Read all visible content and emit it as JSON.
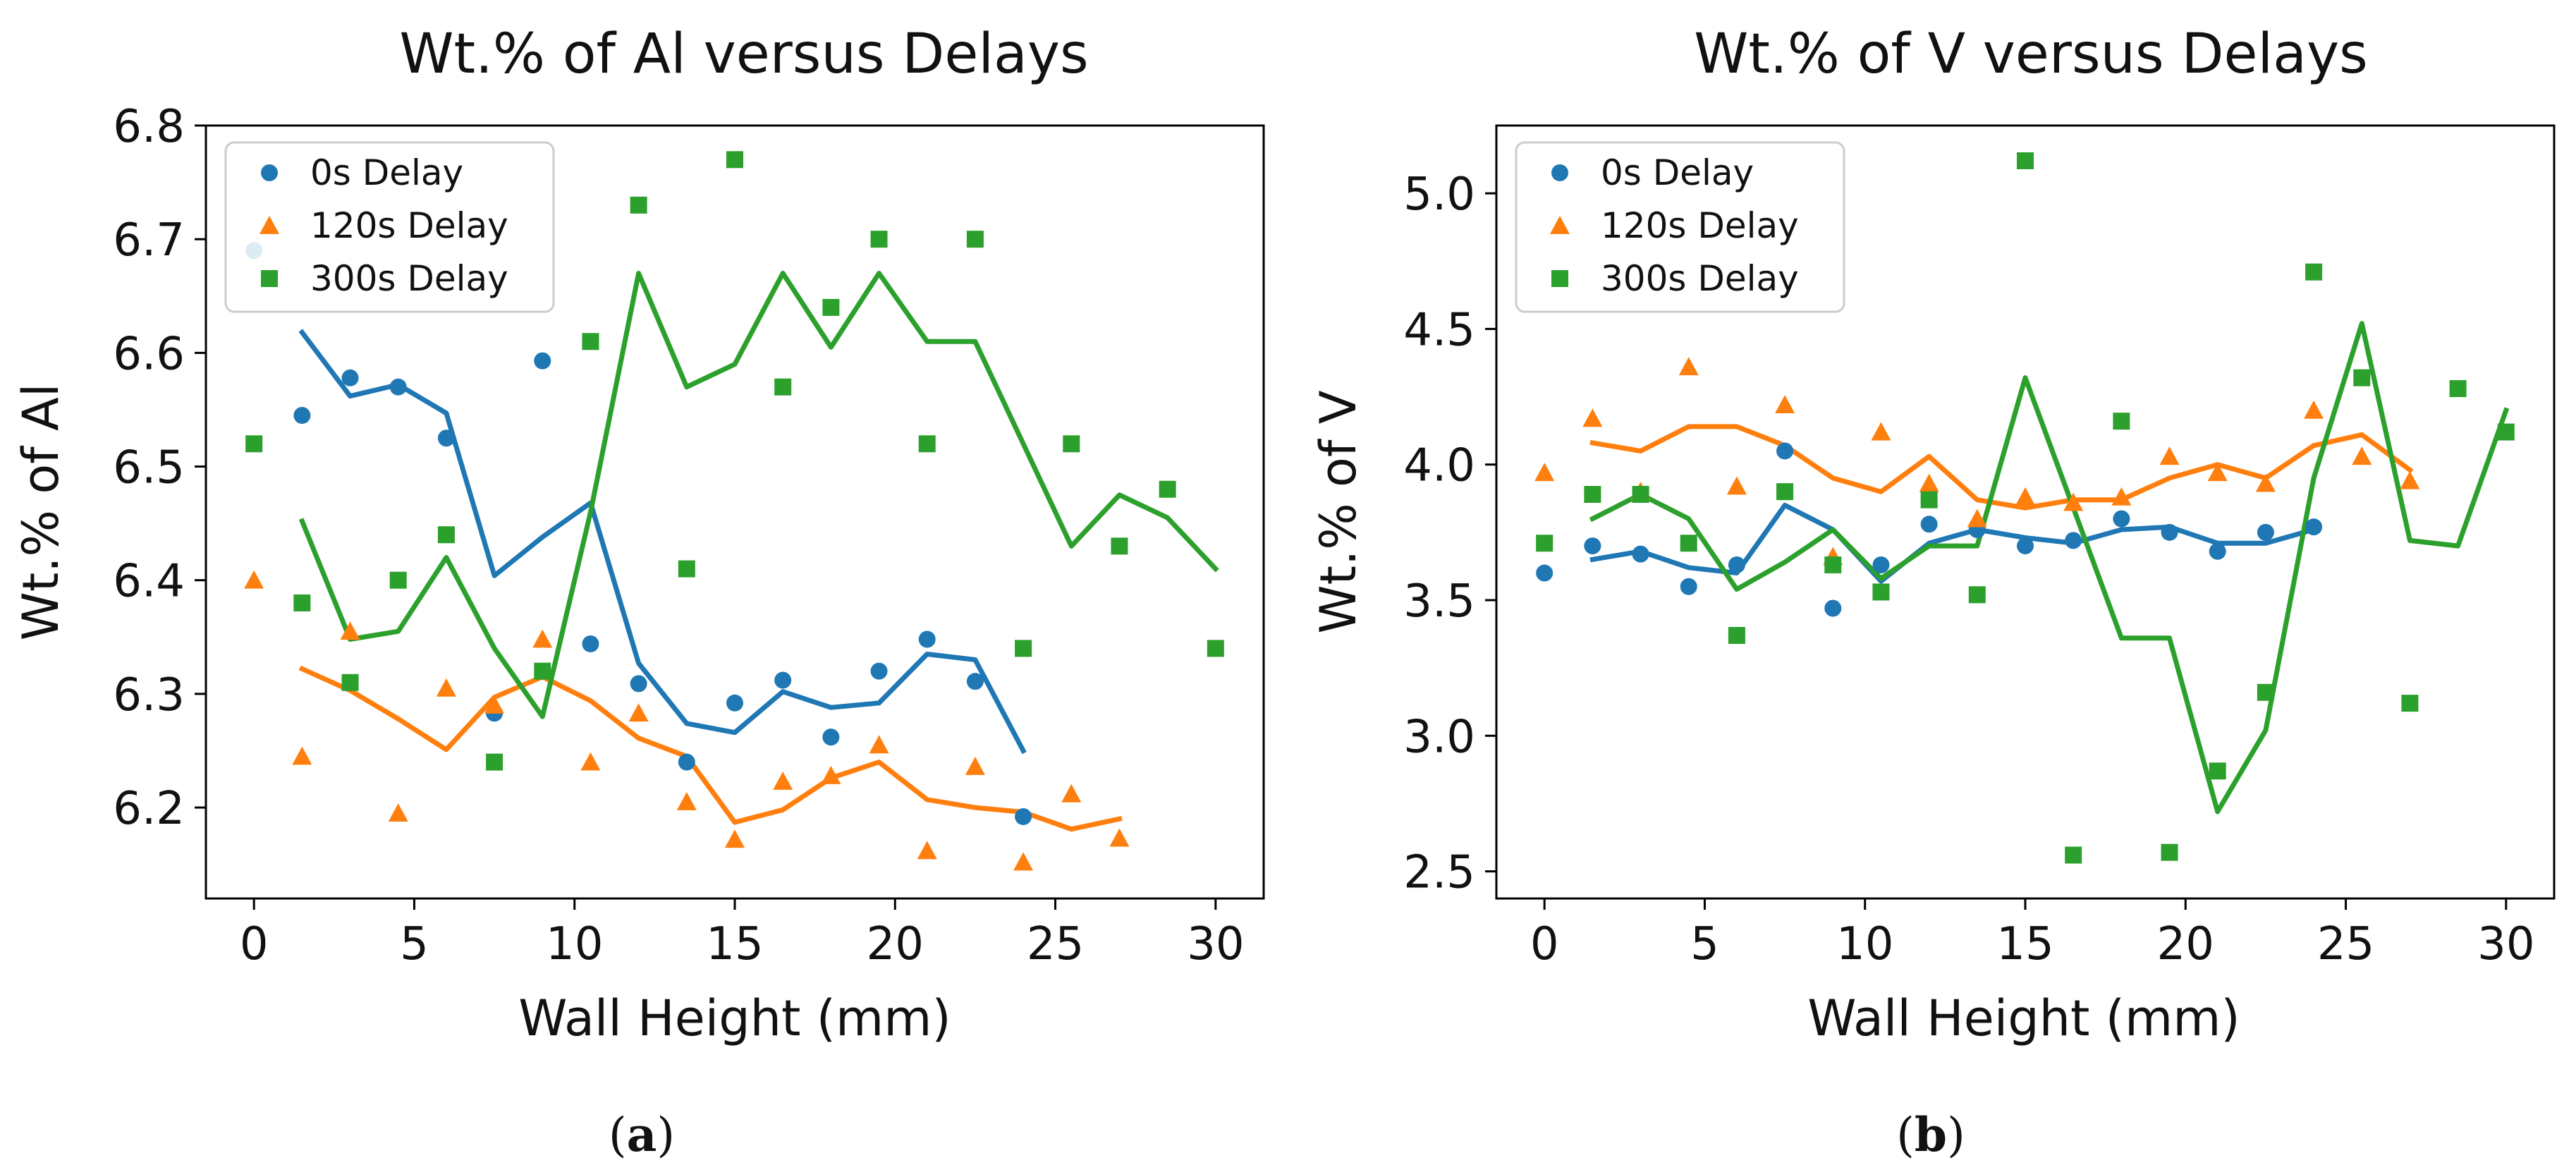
{
  "chart_data": [
    {
      "type": "scatter",
      "title": "Wt.% of Al versus Delays",
      "xlabel": "Wall Height (mm)",
      "ylabel": "Wt.% of Al",
      "xlim": [
        -1.5,
        31.5
      ],
      "ylim": [
        6.12,
        6.8
      ],
      "xticks": [
        0,
        5,
        10,
        15,
        20,
        25,
        30
      ],
      "yticks": [
        6.2,
        6.3,
        6.4,
        6.5,
        6.6,
        6.7,
        6.8
      ],
      "ytick_decimals": 1,
      "legend_position": "top-left",
      "caption": "a",
      "series": [
        {
          "name": "0s Delay",
          "color": "#1f77b4",
          "marker": "circle",
          "points_x": [
            0,
            1.5,
            3,
            4.5,
            6,
            7.5,
            9,
            10.5,
            12,
            13.5,
            15,
            16.5,
            18,
            19.5,
            21,
            22.5,
            24
          ],
          "points_y": [
            6.69,
            6.545,
            6.578,
            6.57,
            6.525,
            6.283,
            6.593,
            6.344,
            6.309,
            6.24,
            6.292,
            6.312,
            6.262,
            6.32,
            6.348,
            6.311,
            6.192
          ],
          "line_x": [
            1.5,
            3,
            4.5,
            6,
            7.5,
            9,
            10.5,
            12,
            13.5,
            15,
            16.5,
            18,
            19.5,
            21,
            22.5,
            24
          ],
          "line_y": [
            6.618,
            6.562,
            6.572,
            6.547,
            6.404,
            6.438,
            6.468,
            6.327,
            6.274,
            6.266,
            6.302,
            6.288,
            6.292,
            6.335,
            6.33,
            6.25
          ]
        },
        {
          "name": "120s Delay",
          "color": "#ff7f0e",
          "marker": "triangle",
          "points_x": [
            0,
            1.5,
            3,
            4.5,
            6,
            7.5,
            9,
            10.5,
            12,
            13.5,
            15,
            16.5,
            18,
            19.5,
            21,
            22.5,
            24,
            25.5,
            27
          ],
          "points_y": [
            6.4,
            6.245,
            6.355,
            6.195,
            6.305,
            6.29,
            6.348,
            6.24,
            6.283,
            6.205,
            6.172,
            6.223,
            6.228,
            6.255,
            6.162,
            6.236,
            6.152,
            6.212,
            6.173
          ],
          "line_x": [
            1.5,
            3,
            4.5,
            6,
            7.5,
            9,
            10.5,
            12,
            13.5,
            15,
            16.5,
            18,
            19.5,
            21,
            22.5,
            24,
            25.5,
            27
          ],
          "line_y": [
            6.322,
            6.303,
            6.278,
            6.251,
            6.297,
            6.315,
            6.294,
            6.261,
            6.245,
            6.187,
            6.198,
            6.226,
            6.24,
            6.207,
            6.2,
            6.196,
            6.181,
            6.19
          ]
        },
        {
          "name": "300s Delay",
          "color": "#2ca02c",
          "marker": "square",
          "points_x": [
            0,
            1.5,
            3,
            4.5,
            6,
            7.5,
            9,
            10.5,
            12,
            13.5,
            15,
            16.5,
            18,
            19.5,
            21,
            22.5,
            24,
            25.5,
            27,
            28.5,
            30
          ],
          "points_y": [
            6.52,
            6.38,
            6.31,
            6.4,
            6.44,
            6.24,
            6.32,
            6.61,
            6.73,
            6.41,
            6.77,
            6.57,
            6.64,
            6.7,
            6.52,
            6.7,
            6.34,
            6.52,
            6.43,
            6.48,
            6.34
          ],
          "line_x": [
            1.5,
            3,
            4.5,
            6,
            7.5,
            9,
            10.5,
            12,
            13.5,
            15,
            16.5,
            18,
            19.5,
            21,
            22.5,
            24,
            25.5,
            27,
            28.5,
            30
          ],
          "line_y": [
            6.452,
            6.348,
            6.355,
            6.42,
            6.34,
            6.28,
            6.46,
            6.67,
            6.57,
            6.59,
            6.67,
            6.605,
            6.67,
            6.61,
            6.61,
            6.52,
            6.43,
            6.475,
            6.455,
            6.41
          ]
        }
      ]
    },
    {
      "type": "scatter",
      "title": "Wt.% of V versus Delays",
      "xlabel": "Wall Height (mm)",
      "ylabel": "Wt.% of V",
      "xlim": [
        -1.5,
        31.5
      ],
      "ylim": [
        2.4,
        5.25
      ],
      "xticks": [
        0,
        5,
        10,
        15,
        20,
        25,
        30
      ],
      "yticks": [
        2.5,
        3.0,
        3.5,
        4.0,
        4.5,
        5.0
      ],
      "ytick_decimals": 1,
      "legend_position": "top-left",
      "caption": "b",
      "series": [
        {
          "name": "0s Delay",
          "color": "#1f77b4",
          "marker": "circle",
          "points_x": [
            0,
            1.5,
            3,
            4.5,
            6,
            7.5,
            9,
            10.5,
            12,
            13.5,
            15,
            16.5,
            18,
            19.5,
            21,
            22.5,
            24
          ],
          "points_y": [
            3.6,
            3.7,
            3.67,
            3.55,
            3.63,
            4.05,
            3.47,
            3.63,
            3.78,
            3.76,
            3.7,
            3.72,
            3.8,
            3.75,
            3.68,
            3.75,
            3.77
          ],
          "line_x": [
            1.5,
            3,
            4.5,
            6,
            7.5,
            9,
            10.5,
            12,
            13.5,
            15,
            16.5,
            18,
            19.5,
            21,
            22.5,
            24
          ],
          "line_y": [
            3.65,
            3.68,
            3.62,
            3.6,
            3.85,
            3.76,
            3.57,
            3.71,
            3.76,
            3.73,
            3.71,
            3.76,
            3.77,
            3.71,
            3.71,
            3.76
          ]
        },
        {
          "name": "120s Delay",
          "color": "#ff7f0e",
          "marker": "triangle",
          "points_x": [
            0,
            1.5,
            3,
            4.5,
            6,
            7.5,
            9,
            10.5,
            12,
            13.5,
            15,
            16.5,
            18,
            19.5,
            21,
            22.5,
            24,
            25.5,
            27
          ],
          "points_y": [
            3.97,
            4.17,
            3.9,
            4.36,
            3.92,
            4.22,
            3.66,
            4.12,
            3.93,
            3.8,
            3.88,
            3.86,
            3.88,
            4.03,
            3.97,
            3.93,
            4.2,
            4.03,
            3.94
          ],
          "line_x": [
            1.5,
            3,
            4.5,
            6,
            7.5,
            9,
            10.5,
            12,
            13.5,
            15,
            16.5,
            18,
            19.5,
            21,
            22.5,
            24,
            25.5,
            27
          ],
          "line_y": [
            4.08,
            4.05,
            4.14,
            4.14,
            4.07,
            3.95,
            3.9,
            4.03,
            3.87,
            3.84,
            3.87,
            3.87,
            3.95,
            4.0,
            3.95,
            4.07,
            4.11,
            3.98
          ]
        },
        {
          "name": "300s Delay",
          "color": "#2ca02c",
          "marker": "square",
          "points_x": [
            0,
            1.5,
            3,
            4.5,
            6,
            7.5,
            9,
            10.5,
            12,
            13.5,
            15,
            16.5,
            18,
            19.5,
            21,
            22.5,
            24,
            25.5,
            27,
            28.5,
            30
          ],
          "points_y": [
            3.71,
            3.89,
            3.89,
            3.71,
            3.37,
            3.9,
            3.63,
            3.53,
            3.87,
            3.52,
            5.12,
            2.56,
            4.16,
            2.57,
            2.87,
            3.16,
            4.71,
            4.32,
            3.12,
            4.28,
            4.12
          ],
          "line_x": [
            1.5,
            3,
            4.5,
            6,
            7.5,
            9,
            10.5,
            12,
            13.5,
            15,
            16.5,
            18,
            19.5,
            21,
            22.5,
            24,
            25.5,
            27,
            28.5,
            30
          ],
          "line_y": [
            3.8,
            3.89,
            3.8,
            3.54,
            3.64,
            3.76,
            3.58,
            3.7,
            3.7,
            4.32,
            3.84,
            3.36,
            3.36,
            2.72,
            3.02,
            3.95,
            4.52,
            3.72,
            3.7,
            4.2
          ]
        }
      ]
    }
  ]
}
